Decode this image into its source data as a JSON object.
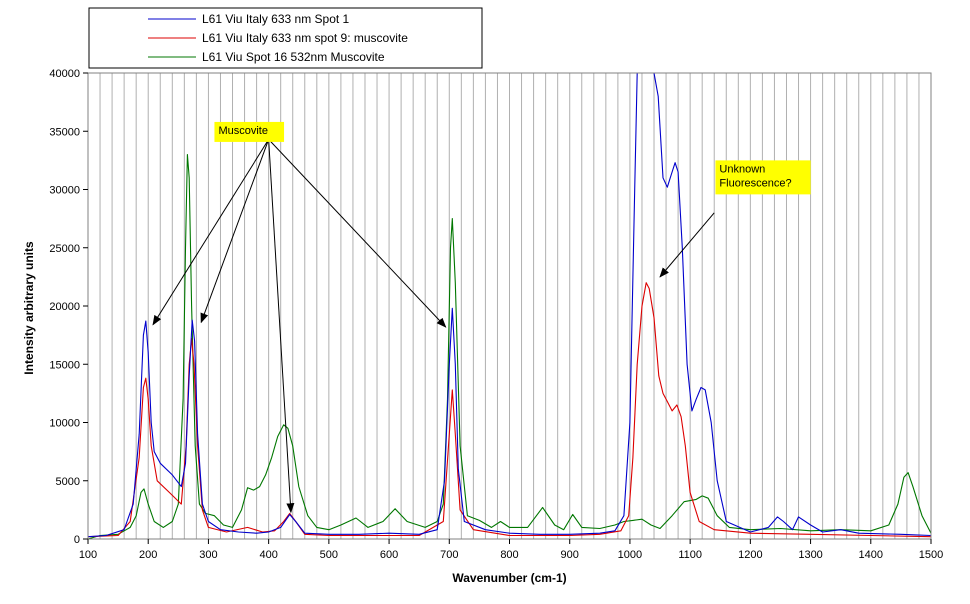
{
  "chart_data": {
    "type": "line",
    "title": "",
    "xlabel": "Wavenumber (cm-1)",
    "ylabel": "Intensity arbitrary units",
    "xlim": [
      100,
      1500
    ],
    "ylim": [
      0,
      40000
    ],
    "xticks": [
      100,
      200,
      300,
      400,
      500,
      600,
      700,
      800,
      900,
      1000,
      1100,
      1200,
      1300,
      1400,
      1500
    ],
    "yticks": [
      0,
      5000,
      10000,
      15000,
      20000,
      25000,
      30000,
      35000,
      40000
    ],
    "grid": "vertical",
    "legend_position": "top-left",
    "series": [
      {
        "name": "L61 Viu Italy 633 nm Spot 1",
        "color": "#0000cc",
        "points": [
          [
            100,
            200
          ],
          [
            130,
            300
          ],
          [
            160,
            800
          ],
          [
            175,
            3000
          ],
          [
            185,
            9000
          ],
          [
            192,
            17500
          ],
          [
            196,
            18700
          ],
          [
            200,
            16000
          ],
          [
            205,
            10000
          ],
          [
            210,
            7500
          ],
          [
            220,
            6500
          ],
          [
            240,
            5500
          ],
          [
            255,
            4500
          ],
          [
            262,
            6500
          ],
          [
            268,
            14000
          ],
          [
            273,
            18800
          ],
          [
            277,
            17000
          ],
          [
            282,
            9000
          ],
          [
            290,
            3000
          ],
          [
            300,
            1500
          ],
          [
            320,
            800
          ],
          [
            350,
            600
          ],
          [
            380,
            500
          ],
          [
            400,
            600
          ],
          [
            420,
            1000
          ],
          [
            435,
            2100
          ],
          [
            445,
            1500
          ],
          [
            460,
            500
          ],
          [
            500,
            400
          ],
          [
            550,
            400
          ],
          [
            600,
            500
          ],
          [
            650,
            400
          ],
          [
            680,
            800
          ],
          [
            692,
            5000
          ],
          [
            700,
            15000
          ],
          [
            705,
            19800
          ],
          [
            710,
            15000
          ],
          [
            715,
            6000
          ],
          [
            725,
            1500
          ],
          [
            760,
            800
          ],
          [
            800,
            500
          ],
          [
            850,
            400
          ],
          [
            900,
            400
          ],
          [
            950,
            500
          ],
          [
            975,
            700
          ],
          [
            990,
            2000
          ],
          [
            1000,
            10000
          ],
          [
            1008,
            30000
          ],
          [
            1012,
            40000
          ],
          [
            1040,
            40000
          ],
          [
            1047,
            38000
          ],
          [
            1055,
            31000
          ],
          [
            1062,
            30200
          ],
          [
            1070,
            31500
          ],
          [
            1075,
            32300
          ],
          [
            1080,
            31500
          ],
          [
            1087,
            25000
          ],
          [
            1095,
            15000
          ],
          [
            1103,
            11000
          ],
          [
            1110,
            12000
          ],
          [
            1118,
            13000
          ],
          [
            1125,
            12800
          ],
          [
            1135,
            10000
          ],
          [
            1145,
            5000
          ],
          [
            1160,
            1500
          ],
          [
            1200,
            600
          ],
          [
            1230,
            1000
          ],
          [
            1245,
            1900
          ],
          [
            1255,
            1500
          ],
          [
            1270,
            800
          ],
          [
            1280,
            1900
          ],
          [
            1300,
            1200
          ],
          [
            1320,
            600
          ],
          [
            1350,
            800
          ],
          [
            1380,
            500
          ],
          [
            1450,
            400
          ],
          [
            1500,
            300
          ]
        ]
      },
      {
        "name": "L61 Viu Italy 633 nm spot 9: muscovite",
        "color": "#dd0000",
        "points": [
          [
            100,
            200
          ],
          [
            150,
            300
          ],
          [
            170,
            1500
          ],
          [
            185,
            7000
          ],
          [
            192,
            13000
          ],
          [
            196,
            13800
          ],
          [
            200,
            12000
          ],
          [
            205,
            8000
          ],
          [
            215,
            5000
          ],
          [
            235,
            4000
          ],
          [
            255,
            3000
          ],
          [
            263,
            8000
          ],
          [
            268,
            15000
          ],
          [
            272,
            17200
          ],
          [
            276,
            15000
          ],
          [
            282,
            8000
          ],
          [
            290,
            2500
          ],
          [
            300,
            1000
          ],
          [
            330,
            600
          ],
          [
            365,
            1000
          ],
          [
            390,
            600
          ],
          [
            410,
            700
          ],
          [
            425,
            1500
          ],
          [
            435,
            2200
          ],
          [
            445,
            1500
          ],
          [
            460,
            400
          ],
          [
            500,
            300
          ],
          [
            550,
            300
          ],
          [
            600,
            300
          ],
          [
            650,
            300
          ],
          [
            690,
            1500
          ],
          [
            700,
            9000
          ],
          [
            705,
            12800
          ],
          [
            710,
            9000
          ],
          [
            718,
            2500
          ],
          [
            740,
            800
          ],
          [
            800,
            300
          ],
          [
            900,
            300
          ],
          [
            950,
            400
          ],
          [
            985,
            700
          ],
          [
            998,
            2000
          ],
          [
            1005,
            7000
          ],
          [
            1012,
            15000
          ],
          [
            1020,
            20000
          ],
          [
            1027,
            22000
          ],
          [
            1032,
            21500
          ],
          [
            1040,
            19000
          ],
          [
            1048,
            14000
          ],
          [
            1055,
            12500
          ],
          [
            1062,
            11800
          ],
          [
            1070,
            11000
          ],
          [
            1078,
            11500
          ],
          [
            1085,
            10500
          ],
          [
            1092,
            8000
          ],
          [
            1100,
            4000
          ],
          [
            1115,
            1500
          ],
          [
            1140,
            800
          ],
          [
            1200,
            500
          ],
          [
            1300,
            400
          ],
          [
            1400,
            300
          ],
          [
            1500,
            200
          ]
        ]
      },
      {
        "name": "L61 Viu Spot 16 532nm Muscovite",
        "color": "#007700",
        "points": [
          [
            100,
            0
          ],
          [
            120,
            300
          ],
          [
            150,
            400
          ],
          [
            170,
            1000
          ],
          [
            180,
            2000
          ],
          [
            188,
            4000
          ],
          [
            193,
            4300
          ],
          [
            200,
            3000
          ],
          [
            210,
            1500
          ],
          [
            225,
            1000
          ],
          [
            240,
            1500
          ],
          [
            250,
            3000
          ],
          [
            258,
            12000
          ],
          [
            262,
            25000
          ],
          [
            265,
            33000
          ],
          [
            268,
            31000
          ],
          [
            272,
            20000
          ],
          [
            278,
            8000
          ],
          [
            285,
            3000
          ],
          [
            295,
            2200
          ],
          [
            310,
            2000
          ],
          [
            325,
            1200
          ],
          [
            340,
            1000
          ],
          [
            355,
            2500
          ],
          [
            365,
            4400
          ],
          [
            375,
            4200
          ],
          [
            385,
            4500
          ],
          [
            395,
            5500
          ],
          [
            405,
            7000
          ],
          [
            415,
            8800
          ],
          [
            425,
            9800
          ],
          [
            432,
            9500
          ],
          [
            440,
            8000
          ],
          [
            450,
            4500
          ],
          [
            465,
            2000
          ],
          [
            480,
            1000
          ],
          [
            500,
            800
          ],
          [
            520,
            1200
          ],
          [
            545,
            1800
          ],
          [
            565,
            1000
          ],
          [
            590,
            1500
          ],
          [
            610,
            2600
          ],
          [
            630,
            1500
          ],
          [
            660,
            1000
          ],
          [
            680,
            1500
          ],
          [
            690,
            3000
          ],
          [
            697,
            12000
          ],
          [
            702,
            25000
          ],
          [
            705,
            27500
          ],
          [
            710,
            22000
          ],
          [
            718,
            8000
          ],
          [
            730,
            2000
          ],
          [
            750,
            1600
          ],
          [
            770,
            1000
          ],
          [
            785,
            1500
          ],
          [
            800,
            1000
          ],
          [
            830,
            1000
          ],
          [
            855,
            2700
          ],
          [
            875,
            1200
          ],
          [
            890,
            800
          ],
          [
            905,
            2100
          ],
          [
            920,
            1000
          ],
          [
            950,
            900
          ],
          [
            975,
            1200
          ],
          [
            990,
            1500
          ],
          [
            1005,
            1600
          ],
          [
            1020,
            1700
          ],
          [
            1035,
            1200
          ],
          [
            1050,
            900
          ],
          [
            1070,
            2000
          ],
          [
            1090,
            3200
          ],
          [
            1110,
            3400
          ],
          [
            1120,
            3700
          ],
          [
            1130,
            3500
          ],
          [
            1145,
            2000
          ],
          [
            1165,
            1000
          ],
          [
            1200,
            800
          ],
          [
            1250,
            900
          ],
          [
            1300,
            700
          ],
          [
            1350,
            800
          ],
          [
            1400,
            700
          ],
          [
            1430,
            1200
          ],
          [
            1445,
            3000
          ],
          [
            1455,
            5300
          ],
          [
            1462,
            5700
          ],
          [
            1470,
            4500
          ],
          [
            1485,
            2000
          ],
          [
            1500,
            500
          ]
        ]
      }
    ],
    "annotations": [
      {
        "lines": [
          "Muscovite"
        ],
        "box": [
          310,
          35800
        ],
        "arrows": {
          "origin": [
            400,
            34300
          ],
          "targets": [
            [
              208,
              18400
            ],
            [
              288,
              18600
            ],
            [
              437,
              2300
            ],
            [
              694,
              18200
            ]
          ]
        }
      },
      {
        "lines": [
          "Unknown",
          "Fluorescence?"
        ],
        "box": [
          1142,
          32500
        ],
        "arrows": {
          "origin": [
            1140,
            28000
          ],
          "targets": [
            [
              1050,
              22500
            ]
          ]
        }
      }
    ]
  }
}
